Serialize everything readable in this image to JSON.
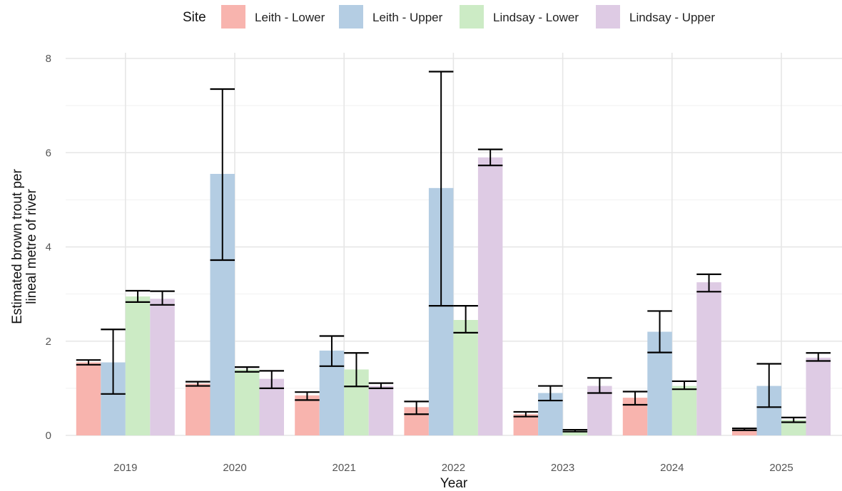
{
  "chart_data": {
    "type": "bar",
    "xlabel": "Year",
    "ylabel_lines": [
      "Estimated brown trout per",
      "lineal metre of river"
    ],
    "ylim": [
      0,
      8
    ],
    "yticks": [
      "0",
      "2",
      "4",
      "6",
      "8"
    ],
    "categories": [
      "2019",
      "2020",
      "2021",
      "2022",
      "2023",
      "2024",
      "2025"
    ],
    "legend": {
      "title": "Site",
      "placement": "top"
    },
    "grid": true,
    "series": [
      {
        "name": "Leith - Lower",
        "color": "#F8B4AE",
        "values": [
          1.55,
          1.1,
          0.85,
          0.6,
          0.45,
          0.8,
          0.13
        ],
        "err_low": [
          1.5,
          1.05,
          0.75,
          0.45,
          0.4,
          0.65,
          0.11
        ],
        "err_high": [
          1.6,
          1.14,
          0.92,
          0.72,
          0.5,
          0.93,
          0.15
        ]
      },
      {
        "name": "Leith - Upper",
        "color": "#B4CDE3",
        "values": [
          1.55,
          5.55,
          1.8,
          5.25,
          0.9,
          2.2,
          1.05
        ],
        "err_low": [
          0.88,
          3.72,
          1.47,
          2.75,
          0.74,
          1.76,
          0.6
        ],
        "err_high": [
          2.25,
          7.35,
          2.11,
          7.72,
          1.05,
          2.64,
          1.52
        ]
      },
      {
        "name": "Lindsay - Lower",
        "color": "#CCEBC5",
        "values": [
          2.95,
          1.4,
          1.4,
          2.45,
          0.1,
          1.05,
          0.33
        ],
        "err_low": [
          2.83,
          1.35,
          1.04,
          2.18,
          0.08,
          0.98,
          0.28
        ],
        "err_high": [
          3.07,
          1.45,
          1.75,
          2.75,
          0.12,
          1.15,
          0.38
        ]
      },
      {
        "name": "Lindsay - Upper",
        "color": "#DECBE4",
        "values": [
          2.9,
          1.2,
          1.05,
          5.9,
          1.05,
          3.25,
          1.65
        ],
        "err_low": [
          2.77,
          1.0,
          1.0,
          5.73,
          0.9,
          3.05,
          1.58
        ],
        "err_high": [
          3.06,
          1.37,
          1.11,
          6.07,
          1.22,
          3.42,
          1.75
        ]
      }
    ]
  }
}
